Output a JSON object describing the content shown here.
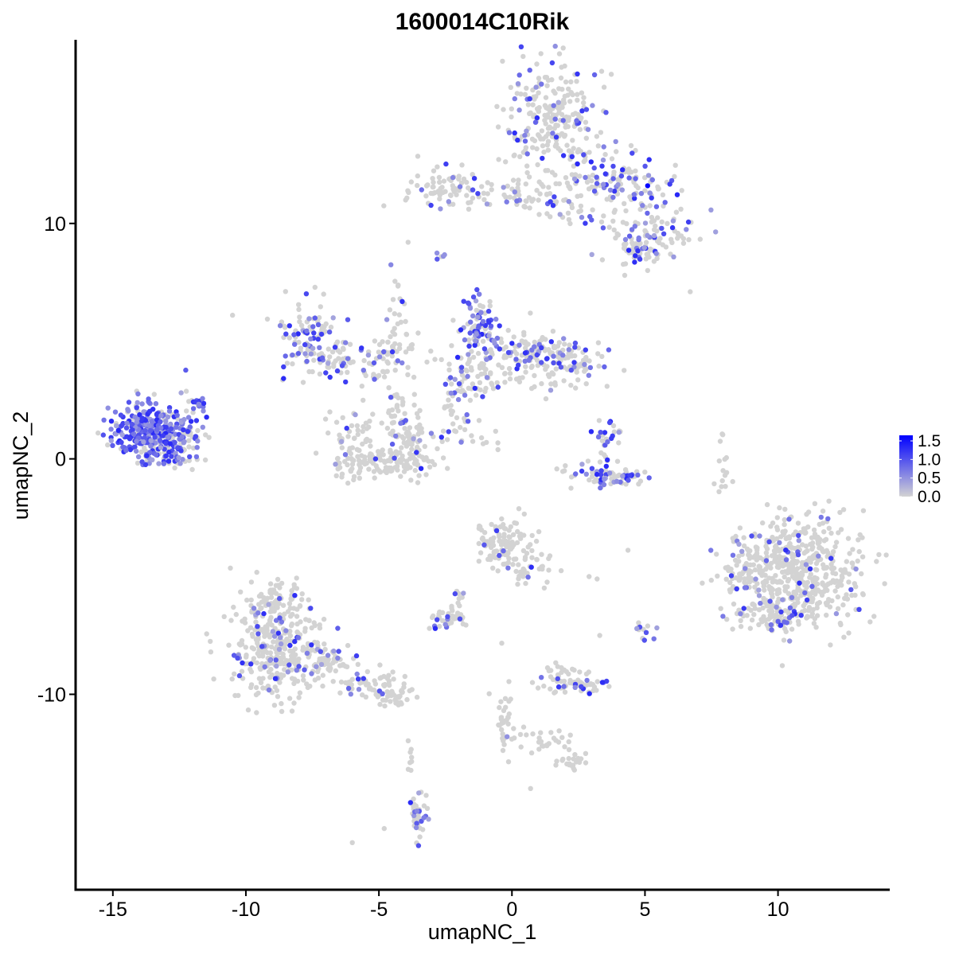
{
  "chart_data": {
    "type": "scatter",
    "title": "1600014C10Rik",
    "xlabel": "umapNC_1",
    "ylabel": "umapNC_2",
    "xlim": [
      -16.4,
      14.2
    ],
    "ylim": [
      -18.3,
      17.8
    ],
    "x_ticks": [
      -15,
      -10,
      -5,
      0,
      5,
      10
    ],
    "y_ticks": [
      -10,
      0,
      10
    ],
    "x_tick_labels": [
      "-15",
      "-10",
      "-5",
      "0",
      "5",
      "10"
    ],
    "y_tick_labels": [
      "-10",
      "0",
      "10"
    ],
    "grid": false,
    "legend": {
      "placement": "right",
      "title": "",
      "min": 0.0,
      "max": 1.65,
      "breaks": [
        0.0,
        0.5,
        1.0,
        1.5
      ],
      "labels": [
        "0.0",
        "0.5",
        "1.0",
        "1.5"
      ],
      "color_low": "#d3d3d3",
      "color_high": "#0000ff"
    },
    "point_colors": {
      "low": "#d3d3d3",
      "high": "#0000ff"
    },
    "clusters": [
      {
        "cx": 1.5,
        "cy": 14.3,
        "sx": 1.0,
        "sy": 1.3,
        "n": 260,
        "expr_frac": 0.17
      },
      {
        "cx": 3.5,
        "cy": 11.8,
        "sx": 1.0,
        "sy": 0.5,
        "n": 70,
        "expr_frac": 0.25
      },
      {
        "cx": 4.8,
        "cy": 11.5,
        "sx": 0.7,
        "sy": 0.5,
        "n": 50,
        "expr_frac": 0.3
      },
      {
        "cx": 5.3,
        "cy": 9.6,
        "sx": 0.9,
        "sy": 0.6,
        "n": 90,
        "expr_frac": 0.3
      },
      {
        "cx": 4.6,
        "cy": 8.8,
        "sx": 0.4,
        "sy": 0.3,
        "n": 35,
        "expr_frac": 0.2
      },
      {
        "cx": -2.6,
        "cy": 11.6,
        "sx": 0.7,
        "sy": 0.4,
        "n": 70,
        "expr_frac": 0.12
      },
      {
        "cx": -0.5,
        "cy": 11.2,
        "sx": 1.3,
        "sy": 0.3,
        "n": 40,
        "expr_frac": 0.1
      },
      {
        "cx": 2.3,
        "cy": 10.6,
        "sx": 1.2,
        "sy": 0.6,
        "n": 40,
        "expr_frac": 0.1
      },
      {
        "cx": -7.6,
        "cy": 5.1,
        "sx": 0.6,
        "sy": 0.8,
        "n": 110,
        "expr_frac": 0.45
      },
      {
        "cx": -6.3,
        "cy": 4.3,
        "sx": 0.7,
        "sy": 0.4,
        "n": 40,
        "expr_frac": 0.1
      },
      {
        "cx": -4.9,
        "cy": 3.8,
        "sx": 0.4,
        "sy": 0.4,
        "n": 30,
        "expr_frac": 0.3
      },
      {
        "cx": -4.2,
        "cy": 4.8,
        "sx": 0.5,
        "sy": 0.6,
        "n": 25,
        "expr_frac": 0.1
      },
      {
        "cx": -4.3,
        "cy": 6.2,
        "sx": 0.25,
        "sy": 1.1,
        "n": 25,
        "expr_frac": 0.2
      },
      {
        "cx": -1.2,
        "cy": 5.5,
        "sx": 0.4,
        "sy": 0.6,
        "n": 90,
        "expr_frac": 0.65
      },
      {
        "cx": 0.4,
        "cy": 4.4,
        "sx": 0.8,
        "sy": 0.5,
        "n": 90,
        "expr_frac": 0.2
      },
      {
        "cx": 1.9,
        "cy": 4.1,
        "sx": 0.7,
        "sy": 0.6,
        "n": 110,
        "expr_frac": 0.18
      },
      {
        "cx": -1.5,
        "cy": 3.6,
        "sx": 0.7,
        "sy": 0.5,
        "n": 70,
        "expr_frac": 0.2
      },
      {
        "cx": -2.2,
        "cy": 2.2,
        "sx": 0.3,
        "sy": 0.7,
        "n": 25,
        "expr_frac": 0.2
      },
      {
        "cx": -6.0,
        "cy": 1.0,
        "sx": 0.45,
        "sy": 0.6,
        "n": 50,
        "expr_frac": 0.05
      },
      {
        "cx": -5.0,
        "cy": -0.2,
        "sx": 1.0,
        "sy": 0.35,
        "n": 110,
        "expr_frac": 0.05
      },
      {
        "cx": -3.8,
        "cy": 0.8,
        "sx": 0.45,
        "sy": 0.65,
        "n": 80,
        "expr_frac": 0.12
      },
      {
        "cx": -4.4,
        "cy": 2.1,
        "sx": 0.2,
        "sy": 0.6,
        "n": 20,
        "expr_frac": 0.05
      },
      {
        "cx": -13.6,
        "cy": 1.2,
        "sx": 0.7,
        "sy": 0.6,
        "n": 330,
        "expr_frac": 0.8
      },
      {
        "cx": -12.3,
        "cy": 1.0,
        "sx": 0.35,
        "sy": 0.45,
        "n": 40,
        "expr_frac": 0.5
      },
      {
        "cx": -12.8,
        "cy": 0.0,
        "sx": 0.5,
        "sy": 0.2,
        "n": 30,
        "expr_frac": 0.3
      },
      {
        "cx": -11.8,
        "cy": 2.4,
        "sx": 0.3,
        "sy": 0.3,
        "n": 20,
        "expr_frac": 0.8
      },
      {
        "cx": 3.5,
        "cy": 0.8,
        "sx": 0.3,
        "sy": 0.6,
        "n": 30,
        "expr_frac": 0.5
      },
      {
        "cx": 3.8,
        "cy": -0.8,
        "sx": 0.55,
        "sy": 0.2,
        "n": 50,
        "expr_frac": 0.6
      },
      {
        "cx": 3.0,
        "cy": -0.5,
        "sx": 0.6,
        "sy": 0.3,
        "n": 20,
        "expr_frac": 0.3
      },
      {
        "cx": 10.6,
        "cy": -4.8,
        "sx": 1.3,
        "sy": 1.2,
        "n": 560,
        "expr_frac": 0.07
      },
      {
        "cx": 9.6,
        "cy": -6.6,
        "sx": 0.7,
        "sy": 0.4,
        "n": 70,
        "expr_frac": 0.12
      },
      {
        "cx": 8.7,
        "cy": -5.0,
        "sx": 0.25,
        "sy": 0.4,
        "n": 20,
        "expr_frac": 0.1
      },
      {
        "cx": -0.3,
        "cy": -3.6,
        "sx": 0.55,
        "sy": 0.5,
        "n": 110,
        "expr_frac": 0.04
      },
      {
        "cx": 0.7,
        "cy": -4.6,
        "sx": 0.5,
        "sy": 0.4,
        "n": 35,
        "expr_frac": 0.05
      },
      {
        "cx": -8.8,
        "cy": -8.2,
        "sx": 0.9,
        "sy": 1.0,
        "n": 330,
        "expr_frac": 0.14
      },
      {
        "cx": -8.7,
        "cy": -6.0,
        "sx": 0.6,
        "sy": 0.5,
        "n": 70,
        "expr_frac": 0.1
      },
      {
        "cx": -6.8,
        "cy": -8.6,
        "sx": 0.4,
        "sy": 0.3,
        "n": 40,
        "expr_frac": 0.15
      },
      {
        "cx": -5.5,
        "cy": -9.5,
        "sx": 0.6,
        "sy": 0.3,
        "n": 55,
        "expr_frac": 0.1
      },
      {
        "cx": -4.4,
        "cy": -10.1,
        "sx": 0.4,
        "sy": 0.2,
        "n": 35,
        "expr_frac": 0.05
      },
      {
        "cx": -2.4,
        "cy": -6.8,
        "sx": 0.35,
        "sy": 0.2,
        "n": 35,
        "expr_frac": 0.2
      },
      {
        "cx": -1.9,
        "cy": -6.1,
        "sx": 0.2,
        "sy": 0.35,
        "n": 12,
        "expr_frac": 0.1
      },
      {
        "cx": 2.4,
        "cy": -9.6,
        "sx": 0.6,
        "sy": 0.2,
        "n": 55,
        "expr_frac": 0.25
      },
      {
        "cx": 1.8,
        "cy": -9.0,
        "sx": 0.3,
        "sy": 0.2,
        "n": 15,
        "expr_frac": 0.1
      },
      {
        "cx": -0.3,
        "cy": -10.8,
        "sx": 0.2,
        "sy": 0.9,
        "n": 35,
        "expr_frac": 0.05
      },
      {
        "cx": 1.2,
        "cy": -12.0,
        "sx": 0.6,
        "sy": 0.3,
        "n": 25,
        "expr_frac": 0.0
      },
      {
        "cx": 2.2,
        "cy": -12.8,
        "sx": 0.3,
        "sy": 0.2,
        "n": 25,
        "expr_frac": 0.0
      },
      {
        "cx": -3.5,
        "cy": -15.0,
        "sx": 0.15,
        "sy": 0.6,
        "n": 40,
        "expr_frac": 0.3
      },
      {
        "cx": -3.8,
        "cy": -12.5,
        "sx": 0.1,
        "sy": 0.5,
        "n": 8,
        "expr_frac": 0.0
      },
      {
        "cx": 5.0,
        "cy": -7.3,
        "sx": 0.15,
        "sy": 0.2,
        "n": 12,
        "expr_frac": 0.3
      },
      {
        "cx": 8.0,
        "cy": -0.5,
        "sx": 0.15,
        "sy": 0.6,
        "n": 15,
        "expr_frac": 0.0
      },
      {
        "cx": -2.7,
        "cy": 8.6,
        "sx": 0.1,
        "sy": 0.1,
        "n": 5,
        "expr_frac": 0.6
      },
      {
        "cx": -1.8,
        "cy": 1.3,
        "sx": 0.3,
        "sy": 0.3,
        "n": 10,
        "expr_frac": 0.2
      },
      {
        "cx": -1.0,
        "cy": 0.7,
        "sx": 0.5,
        "sy": 0.2,
        "n": 8,
        "expr_frac": 0.2
      }
    ],
    "singletons": [
      {
        "x": -10.5,
        "y": 6.1,
        "v": 0
      },
      {
        "x": 6.7,
        "y": 7.1,
        "v": 0
      },
      {
        "x": 5.1,
        "y": 8.0,
        "v": 0
      },
      {
        "x": -6.0,
        "y": -16.3,
        "v": 0
      },
      {
        "x": -4.8,
        "y": -15.7,
        "v": 0
      },
      {
        "x": 0.7,
        "y": -14.0,
        "v": 0
      },
      {
        "x": 5.1,
        "y": 11.6,
        "v": 1.65
      },
      {
        "x": 3.8,
        "y": 10.1,
        "v": 0
      },
      {
        "x": 2.9,
        "y": -5.0,
        "v": 0
      },
      {
        "x": 3.2,
        "y": -5.1,
        "v": 0
      },
      {
        "x": -3.1,
        "y": -7.2,
        "v": 0
      },
      {
        "x": 3.3,
        "y": -7.5,
        "v": 0
      }
    ]
  }
}
